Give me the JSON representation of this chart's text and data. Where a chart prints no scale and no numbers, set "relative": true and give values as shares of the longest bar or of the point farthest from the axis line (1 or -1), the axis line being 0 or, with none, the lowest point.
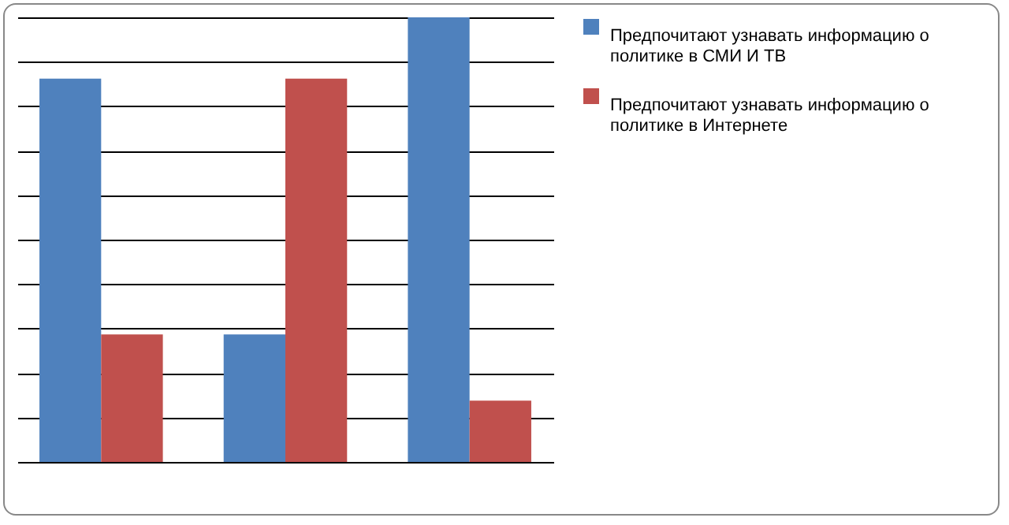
{
  "chart_data": {
    "type": "bar",
    "relative": true,
    "categories": [
      null,
      null,
      null
    ],
    "series": [
      {
        "name": "Предпочитают узнавать информацию о политике в СМИ И ТВ",
        "color": "#4f81bd",
        "values": [
          0.862,
          0.287,
          1
        ]
      },
      {
        "name": "Предпочитают узнавать информацию о политике в Интернете",
        "color": "#c0504d",
        "values": [
          0.287,
          0.862,
          0.138
        ]
      }
    ],
    "grid": "y",
    "legend": "right"
  }
}
